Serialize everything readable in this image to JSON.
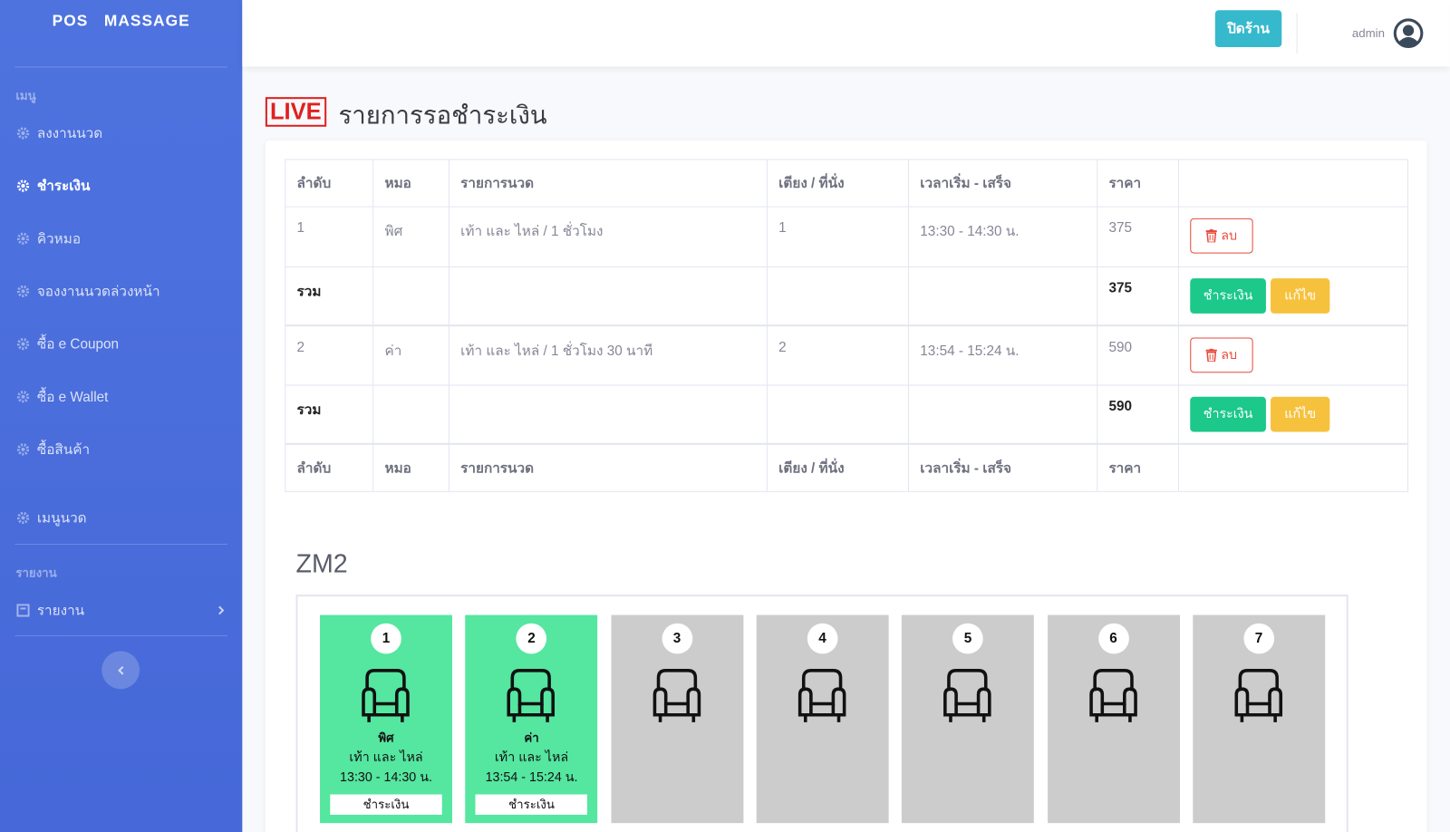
{
  "sidebar": {
    "brand": "POS   MASSAGE",
    "menu_heading": "เมนู",
    "menu": [
      "ลงงานนวด",
      "ชำระเงิน",
      "คิวหมอ",
      "จองงานนวดล่วงหน้า",
      "ซื้อ e Coupon",
      "ซื้อ e Wallet",
      "ซื้อสินค้า",
      "เมนูนวด"
    ],
    "report_heading": "รายงาน",
    "report_item": "รายงาน"
  },
  "topbar": {
    "close_button": "ปิดร้าน",
    "user": "admin"
  },
  "page": {
    "live": "LIVE",
    "title": "รายการรอชำระเงิน"
  },
  "table": {
    "headers": [
      "ลำดับ",
      "หมอ",
      "รายการนวด",
      "เตียง / ที่นั่ง",
      "เวลาเริ่ม - เสร็จ",
      "ราคา"
    ],
    "groups": [
      {
        "row": [
          "1",
          "พิศ",
          "เท้า และ ไหล่ / 1 ชั่วโมง",
          "1",
          "13:30 - 14:30 น.",
          "375"
        ],
        "delete": "ลบ",
        "total_label": "รวม",
        "total": "375",
        "pay": "ชำระเงิน",
        "edit": "แก้ไข"
      },
      {
        "row": [
          "2",
          "ค่า",
          "เท้า และ ไหล่ / 1 ชั่วโมง 30 นาที",
          "2",
          "13:54 - 15:24 น.",
          "590"
        ],
        "delete": "ลบ",
        "total_label": "รวม",
        "total": "590",
        "pay": "ชำระเงิน",
        "edit": "แก้ไข"
      }
    ],
    "footer": [
      "ลำดับ",
      "หมอ",
      "รายการนวด",
      "เตียง / ที่นั่ง",
      "เวลาเริ่ม - เสร็จ",
      "ราคา"
    ]
  },
  "zone": {
    "name": "ZM2",
    "seats": [
      {
        "number": "1",
        "therapist": "พิศ",
        "service": "เท้า และ ไหล่",
        "time": "13:30 - 14:30 น.",
        "action": "ชำระเงิน"
      },
      {
        "number": "2",
        "therapist": "ค่า",
        "service": "เท้า และ ไหล่",
        "time": "13:54 - 15:24 น.",
        "action": "ชำระเงิน"
      },
      {
        "number": "3"
      },
      {
        "number": "4"
      },
      {
        "number": "5"
      },
      {
        "number": "6"
      },
      {
        "number": "7"
      }
    ]
  }
}
